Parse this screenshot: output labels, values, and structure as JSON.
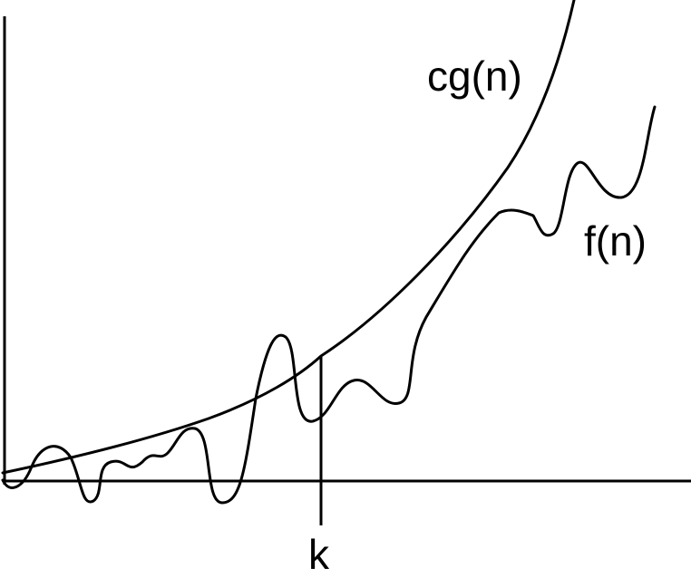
{
  "labels": {
    "upper_bound_curve": "cg(n)",
    "function_curve": "f(n)",
    "threshold": "k"
  }
}
